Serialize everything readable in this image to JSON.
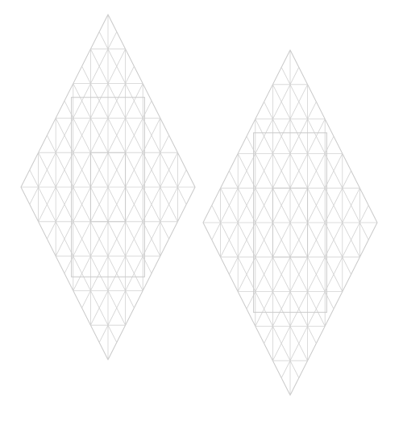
{
  "figure": {
    "background": "#ffffff",
    "line_color": "#c9c9c9",
    "inner_line_color": "#d2d2d2",
    "shapes": [
      {
        "name": "left-diamond",
        "kind": "triangulated rhombus lattice"
      },
      {
        "name": "right-diamond",
        "kind": "triangulated rhombus lattice"
      }
    ]
  }
}
